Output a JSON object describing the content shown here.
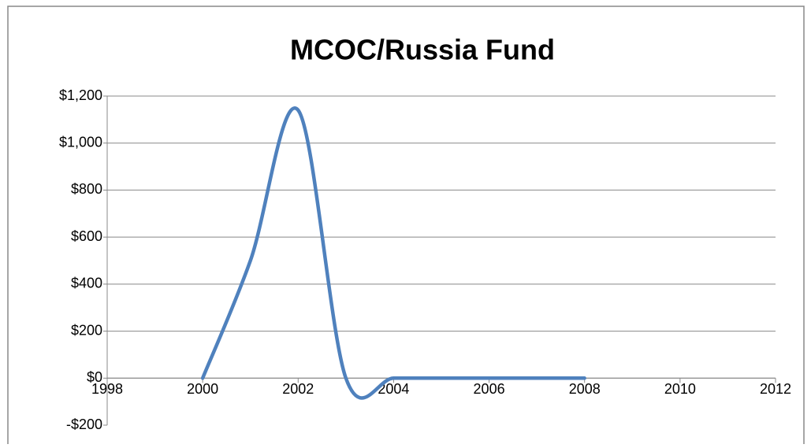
{
  "chart_data": {
    "type": "line",
    "title": "MCOC/Russia Fund",
    "x": [
      2000,
      2001,
      2002,
      2003,
      2004,
      2005,
      2006,
      2007,
      2008
    ],
    "series": [
      {
        "name": "MCOC/Russia Fund",
        "color": "#4f81bd",
        "values": [
          0,
          500,
          1140,
          0,
          0,
          0,
          0,
          0,
          0
        ]
      }
    ],
    "xlim": [
      1998,
      2012
    ],
    "xticks": [
      1998,
      2000,
      2002,
      2004,
      2006,
      2008,
      2010,
      2012
    ],
    "ylim": [
      -200,
      1200
    ],
    "yticks": [
      {
        "value": -200,
        "label": "-$200"
      },
      {
        "value": 0,
        "label": "$0"
      },
      {
        "value": 200,
        "label": "$200"
      },
      {
        "value": 400,
        "label": "$400"
      },
      {
        "value": 600,
        "label": "$600"
      },
      {
        "value": 800,
        "label": "$800"
      },
      {
        "value": 1000,
        "label": "$1,000"
      },
      {
        "value": 1200,
        "label": "$1,200"
      }
    ],
    "grid": true,
    "smooth": true
  }
}
